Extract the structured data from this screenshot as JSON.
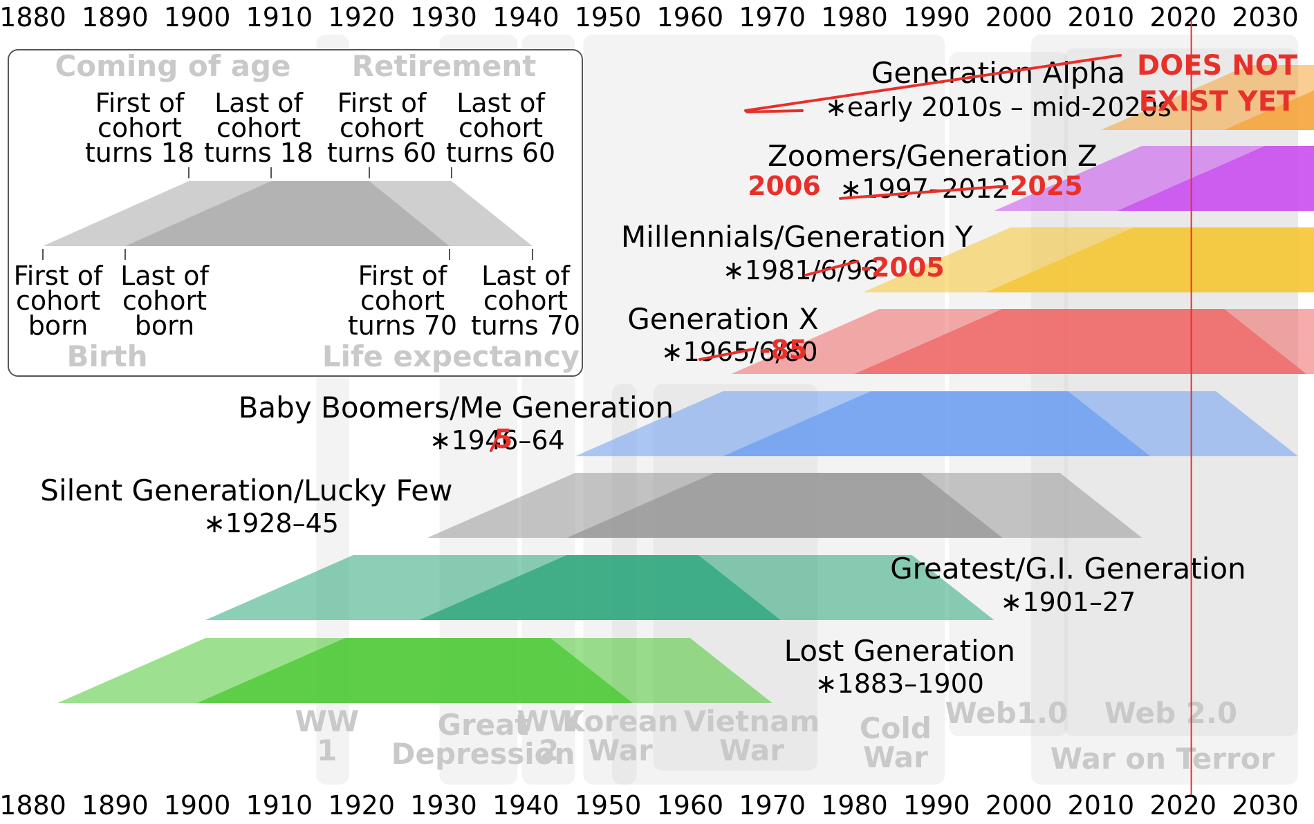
{
  "axis": {
    "years": [
      "1880",
      "1890",
      "1900",
      "1910",
      "1920",
      "1930",
      "1940",
      "1950",
      "1960",
      "1970",
      "1980",
      "1990",
      "2000",
      "2010",
      "2020",
      "2030"
    ]
  },
  "events": [
    {
      "id": "ww1",
      "lines": [
        "WW",
        "1"
      ]
    },
    {
      "id": "depression",
      "lines": [
        "Great",
        "Depression"
      ]
    },
    {
      "id": "ww2",
      "lines": [
        "WW",
        "2"
      ]
    },
    {
      "id": "korean",
      "lines": [
        "Korean",
        "War"
      ]
    },
    {
      "id": "vietnam",
      "lines": [
        "Vietnam",
        "War"
      ]
    },
    {
      "id": "coldwar",
      "lines": [
        "Cold",
        "War"
      ]
    },
    {
      "id": "web1",
      "lines": [
        "Web1.0"
      ]
    },
    {
      "id": "web2",
      "lines": [
        "Web 2.0"
      ]
    },
    {
      "id": "terror",
      "lines": [
        "War on Terror"
      ]
    }
  ],
  "generations": [
    {
      "id": "alpha",
      "name": "Generation Alpha",
      "years": "∗early 2010s – mid-2020s",
      "color": "#f5a43a",
      "first_born": 2010,
      "last_born": 2025,
      "struck": true
    },
    {
      "id": "z",
      "name": "Zoomers/Generation Z",
      "years": "∗1997–2012",
      "color": "#c94ef0",
      "first_born": 1997,
      "last_born": 2012,
      "edit_before": "2006",
      "edit_after": "-2025"
    },
    {
      "id": "millennials",
      "name": "Millennials/Generation Y",
      "years": "∗1981/6/96",
      "color": "#f6c531",
      "first_born": 1981,
      "last_born": 1996,
      "edit_after": "-2005"
    },
    {
      "id": "x",
      "name": "Generation X",
      "years": "∗1965/6/80",
      "color": "#f06868",
      "first_born": 1965,
      "last_born": 1980,
      "edit_after": "-85"
    },
    {
      "id": "boomers",
      "name": "Baby Boomers/Me Generation",
      "years": "∗1946–64",
      "color": "#6fa0f2",
      "first_born": 1946,
      "last_born": 1964,
      "edit_after": "5"
    },
    {
      "id": "silent",
      "name": "Silent Generation/Lucky Few",
      "years": "∗1928–45",
      "color": "#999999",
      "first_born": 1928,
      "last_born": 1945
    },
    {
      "id": "greatest",
      "name": "Greatest/G.I. Generation",
      "years": "∗1901–27",
      "color": "#2ea77c",
      "first_born": 1901,
      "last_born": 1927
    },
    {
      "id": "lost",
      "name": "Lost Generation",
      "years": "∗1883–1900",
      "color": "#4cc935",
      "first_born": 1883,
      "last_born": 1900
    }
  ],
  "warning": {
    "line1": "DOES NOT",
    "line2": "EXIST YET",
    "year": 2021
  },
  "legend": {
    "coming_of_age": "Coming of age",
    "retirement": "Retirement",
    "birth": "Birth",
    "life_expectancy": "Life expectancy",
    "top_labels": [
      [
        "First of",
        "cohort",
        "turns 18"
      ],
      [
        "Last of",
        "cohort",
        "turns 18"
      ],
      [
        "First of",
        "cohort",
        "turns 60"
      ],
      [
        "Last of",
        "cohort",
        "turns 60"
      ]
    ],
    "bottom_labels": [
      [
        "First of",
        "cohort",
        "born"
      ],
      [
        "Last of",
        "cohort",
        "born"
      ],
      [
        "First of",
        "cohort",
        "turns 70"
      ],
      [
        "Last of",
        "cohort",
        "turns 70"
      ]
    ]
  }
}
